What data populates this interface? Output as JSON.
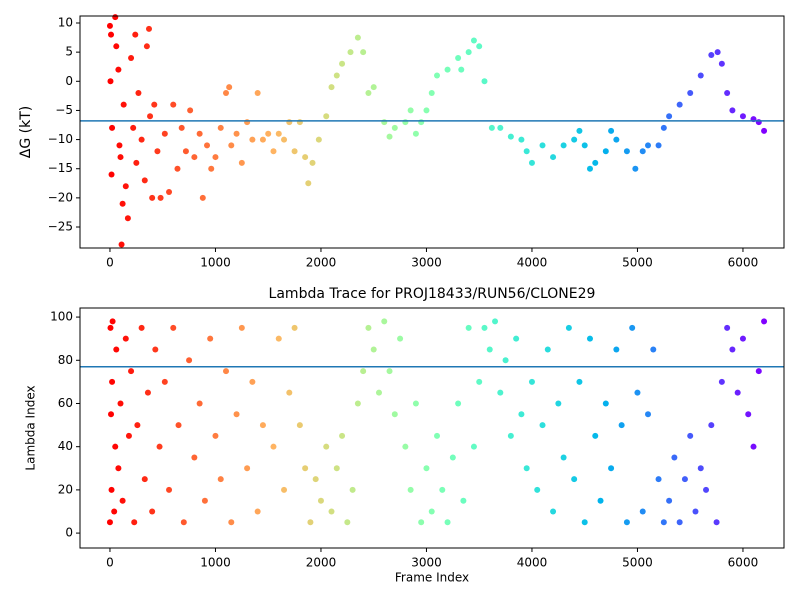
{
  "chart_data": [
    {
      "type": "scatter",
      "ylabel": "ΔG (kT)",
      "colormap": "rainbow_r",
      "x": [
        0,
        5,
        10,
        15,
        20,
        50,
        60,
        80,
        90,
        100,
        110,
        120,
        130,
        150,
        170,
        200,
        220,
        240,
        250,
        270,
        300,
        330,
        350,
        370,
        380,
        400,
        420,
        450,
        480,
        520,
        560,
        600,
        640,
        680,
        720,
        760,
        800,
        850,
        880,
        920,
        960,
        1000,
        1050,
        1100,
        1130,
        1150,
        1200,
        1250,
        1300,
        1350,
        1400,
        1450,
        1500,
        1550,
        1600,
        1650,
        1700,
        1750,
        1800,
        1850,
        1880,
        1920,
        1980,
        2050,
        2100,
        2150,
        2200,
        2280,
        2350,
        2400,
        2450,
        2500,
        2600,
        2650,
        2700,
        2800,
        2850,
        2900,
        2950,
        3000,
        3050,
        3100,
        3200,
        3300,
        3330,
        3400,
        3450,
        3500,
        3550,
        3620,
        3700,
        3800,
        3900,
        3950,
        4000,
        4100,
        4200,
        4300,
        4400,
        4450,
        4500,
        4550,
        4600,
        4700,
        4750,
        4800,
        4900,
        4980,
        5050,
        5100,
        5200,
        5250,
        5300,
        5400,
        5500,
        5600,
        5700,
        5760,
        5800,
        5850,
        5900,
        6000,
        6100,
        6150,
        6200
      ],
      "values": [
        9.5,
        0,
        8,
        -16,
        -8,
        11,
        6,
        2,
        -11,
        -13,
        -28,
        -21,
        -4,
        -18,
        -23.5,
        4,
        -8,
        8,
        -14,
        -2,
        -10,
        -17,
        6,
        9,
        -6,
        -20,
        -4,
        -12,
        -20,
        -9,
        -19,
        -4,
        -15,
        -8,
        -12,
        -5,
        -13,
        -9,
        -20,
        -11,
        -15,
        -13,
        -8,
        -2,
        -1,
        -11,
        -9,
        -14,
        -7,
        -10,
        -2,
        -10,
        -9,
        -12,
        -9,
        -10,
        -7,
        -12,
        -7,
        -13,
        -17.5,
        -14,
        -10,
        -6,
        -1,
        1,
        3,
        5,
        7.5,
        5,
        -2,
        -1,
        -7,
        -9.5,
        -8,
        -7,
        -5,
        -9,
        -7,
        -5,
        -2,
        1,
        2,
        4,
        2,
        5,
        7,
        6,
        0,
        -8,
        -8,
        -9.5,
        -10,
        -12,
        -14,
        -11,
        -13,
        -11,
        -10,
        -8.5,
        -11,
        -15,
        -14,
        -12,
        -8.5,
        -10,
        -12,
        -15,
        -12,
        -11,
        -11,
        -8,
        -6,
        -4,
        -2,
        1,
        4.5,
        5,
        3,
        -2,
        -5,
        -6,
        -6.5,
        -7,
        -8.5
      ],
      "hline": -6.8,
      "hline_color": "#1f77b4",
      "xlim": [
        -284,
        6389
      ],
      "ylim": [
        -28.6,
        11.2
      ],
      "xticks": [
        0,
        1000,
        2000,
        3000,
        4000,
        5000,
        6000
      ],
      "yticks": [
        {
          "value": -25,
          "label": "−25"
        },
        {
          "value": -20,
          "label": "−20"
        },
        {
          "value": -15,
          "label": "−15"
        },
        {
          "value": -10,
          "label": "−10"
        },
        {
          "value": -5,
          "label": "−5"
        },
        0,
        5,
        10
      ]
    },
    {
      "type": "scatter",
      "title": "Lambda Trace for PROJ18433/RUN56/CLONE29",
      "xlabel": "Frame Index",
      "ylabel": "Lambda Index",
      "colormap": "rainbow_r",
      "x": [
        0,
        5,
        10,
        15,
        20,
        25,
        40,
        50,
        60,
        80,
        100,
        120,
        150,
        180,
        200,
        230,
        260,
        300,
        330,
        360,
        400,
        430,
        470,
        520,
        560,
        600,
        650,
        700,
        750,
        800,
        850,
        900,
        950,
        1000,
        1050,
        1100,
        1150,
        1200,
        1250,
        1300,
        1350,
        1400,
        1450,
        1550,
        1600,
        1650,
        1700,
        1750,
        1800,
        1850,
        1900,
        1950,
        2000,
        2050,
        2100,
        2150,
        2200,
        2250,
        2300,
        2350,
        2400,
        2450,
        2500,
        2550,
        2600,
        2650,
        2700,
        2750,
        2800,
        2850,
        2900,
        2950,
        3000,
        3050,
        3100,
        3150,
        3200,
        3250,
        3300,
        3350,
        3400,
        3450,
        3500,
        3550,
        3600,
        3650,
        3700,
        3750,
        3800,
        3850,
        3900,
        3950,
        4000,
        4050,
        4100,
        4150,
        4200,
        4250,
        4300,
        4350,
        4400,
        4450,
        4500,
        4550,
        4600,
        4650,
        4700,
        4750,
        4800,
        4850,
        4900,
        4950,
        5000,
        5050,
        5100,
        5150,
        5200,
        5250,
        5300,
        5350,
        5400,
        5450,
        5500,
        5550,
        5600,
        5650,
        5700,
        5750,
        5800,
        5850,
        5900,
        5950,
        6000,
        6050,
        6100,
        6150,
        6200
      ],
      "values": [
        5,
        95,
        55,
        20,
        70,
        98,
        10,
        40,
        85,
        30,
        60,
        15,
        90,
        45,
        75,
        5,
        50,
        95,
        25,
        65,
        10,
        85,
        40,
        70,
        20,
        95,
        50,
        5,
        80,
        35,
        60,
        15,
        90,
        45,
        25,
        75,
        5,
        55,
        95,
        30,
        70,
        10,
        50,
        40,
        90,
        20,
        65,
        95,
        50,
        30,
        5,
        25,
        15,
        40,
        10,
        30,
        45,
        5,
        20,
        60,
        75,
        95,
        85,
        65,
        98,
        75,
        55,
        90,
        40,
        20,
        60,
        5,
        30,
        10,
        45,
        20,
        5,
        35,
        60,
        15,
        95,
        40,
        70,
        95,
        85,
        98,
        65,
        80,
        45,
        90,
        55,
        30,
        70,
        20,
        50,
        85,
        10,
        60,
        35,
        95,
        25,
        70,
        5,
        90,
        45,
        15,
        60,
        30,
        85,
        50,
        5,
        95,
        65,
        10,
        55,
        85,
        25,
        5,
        15,
        35,
        5,
        25,
        45,
        10,
        30,
        20,
        50,
        5,
        70,
        95,
        85,
        65,
        90,
        55,
        40,
        75,
        98
      ],
      "hline": 77,
      "hline_color": "#1f77b4",
      "xlim": [
        -284,
        6389
      ],
      "ylim": [
        -6.9,
        104.2
      ],
      "xticks": [
        0,
        1000,
        2000,
        3000,
        4000,
        5000,
        6000
      ],
      "yticks": [
        0,
        20,
        40,
        60,
        80,
        100
      ]
    }
  ]
}
